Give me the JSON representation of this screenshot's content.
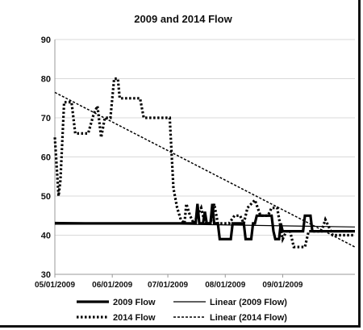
{
  "chart_data": {
    "type": "line",
    "title": "2009 and 2014 Flow",
    "xlabel": "",
    "ylabel": "",
    "ylim": [
      30,
      90
    ],
    "yticks": [
      "30",
      "40",
      "50",
      "60",
      "70",
      "80",
      "90"
    ],
    "xlim": [
      "2009-05-01",
      "2009-10-10"
    ],
    "xticks": [
      {
        "label": "05/01/2009",
        "date": "2009-05-01"
      },
      {
        "label": "06/01/2009",
        "date": "2009-06-01"
      },
      {
        "label": "07/01/2009",
        "date": "2009-07-01"
      },
      {
        "label": "08/01/2009",
        "date": "2009-08-01"
      },
      {
        "label": "09/01/2009",
        "date": "2009-09-01"
      }
    ],
    "grid": "horizontal",
    "legend_position": "bottom",
    "series": [
      {
        "name": "2009 Flow",
        "style": "solid-thick",
        "points": [
          [
            "2009-05-01",
            43
          ],
          [
            "2009-07-16",
            43
          ],
          [
            "2009-07-17",
            48
          ],
          [
            "2009-07-18",
            43
          ],
          [
            "2009-07-20",
            43
          ],
          [
            "2009-07-21",
            46
          ],
          [
            "2009-07-22",
            43
          ],
          [
            "2009-07-24",
            43
          ],
          [
            "2009-07-25",
            48
          ],
          [
            "2009-07-26",
            43
          ],
          [
            "2009-07-28",
            43
          ],
          [
            "2009-07-29",
            39
          ],
          [
            "2009-08-04",
            39
          ],
          [
            "2009-08-05",
            43
          ],
          [
            "2009-08-11",
            43
          ],
          [
            "2009-08-12",
            39
          ],
          [
            "2009-08-15",
            39
          ],
          [
            "2009-08-16",
            43
          ],
          [
            "2009-08-17",
            43
          ],
          [
            "2009-08-18",
            45
          ],
          [
            "2009-08-26",
            45
          ],
          [
            "2009-08-27",
            41
          ],
          [
            "2009-08-28",
            39
          ],
          [
            "2009-08-30",
            39
          ],
          [
            "2009-08-31",
            43
          ],
          [
            "2009-09-01",
            41
          ],
          [
            "2009-09-12",
            41
          ],
          [
            "2009-09-13",
            45
          ],
          [
            "2009-09-16",
            45
          ],
          [
            "2009-09-17",
            41
          ],
          [
            "2009-10-10",
            41
          ]
        ]
      },
      {
        "name": "2014 Flow",
        "style": "dotted-thick",
        "points": [
          [
            "2009-05-01",
            65
          ],
          [
            "2009-05-03",
            50
          ],
          [
            "2009-05-04",
            54
          ],
          [
            "2009-05-06",
            74
          ],
          [
            "2009-05-10",
            74
          ],
          [
            "2009-05-12",
            66
          ],
          [
            "2009-05-19",
            66
          ],
          [
            "2009-05-22",
            71
          ],
          [
            "2009-05-24",
            73
          ],
          [
            "2009-05-26",
            65
          ],
          [
            "2009-05-28",
            70
          ],
          [
            "2009-05-31",
            70
          ],
          [
            "2009-06-02",
            80
          ],
          [
            "2009-06-04",
            80
          ],
          [
            "2009-06-05",
            75
          ],
          [
            "2009-06-16",
            75
          ],
          [
            "2009-06-18",
            70
          ],
          [
            "2009-07-02",
            70
          ],
          [
            "2009-07-04",
            52
          ],
          [
            "2009-07-06",
            47
          ],
          [
            "2009-07-08",
            44
          ],
          [
            "2009-07-10",
            43
          ],
          [
            "2009-07-11",
            48
          ],
          [
            "2009-07-13",
            45
          ],
          [
            "2009-07-15",
            43
          ],
          [
            "2009-07-19",
            47
          ],
          [
            "2009-07-21",
            43
          ],
          [
            "2009-07-24",
            43
          ],
          [
            "2009-07-26",
            48
          ],
          [
            "2009-07-28",
            43
          ],
          [
            "2009-08-03",
            43
          ],
          [
            "2009-08-06",
            45
          ],
          [
            "2009-08-09",
            45
          ],
          [
            "2009-08-11",
            43
          ],
          [
            "2009-08-13",
            47
          ],
          [
            "2009-08-17",
            49
          ],
          [
            "2009-08-20",
            45
          ],
          [
            "2009-08-24",
            45
          ],
          [
            "2009-08-26",
            47
          ],
          [
            "2009-08-29",
            47
          ],
          [
            "2009-09-01",
            39
          ],
          [
            "2009-09-03",
            41
          ],
          [
            "2009-09-05",
            41
          ],
          [
            "2009-09-07",
            37
          ],
          [
            "2009-09-13",
            37
          ],
          [
            "2009-09-15",
            41
          ],
          [
            "2009-09-22",
            41
          ],
          [
            "2009-09-24",
            44
          ],
          [
            "2009-09-26",
            42
          ],
          [
            "2009-09-28",
            40
          ],
          [
            "2009-10-10",
            40
          ]
        ]
      },
      {
        "name": "Linear (2009 Flow)",
        "style": "solid-thin",
        "points": [
          [
            "2009-05-01",
            43.3
          ],
          [
            "2009-10-10",
            42.1
          ]
        ]
      },
      {
        "name": "Linear (2014 Flow)",
        "style": "dashed-thin",
        "points": [
          [
            "2009-05-01",
            76.5
          ],
          [
            "2009-10-10",
            37
          ]
        ]
      }
    ]
  }
}
